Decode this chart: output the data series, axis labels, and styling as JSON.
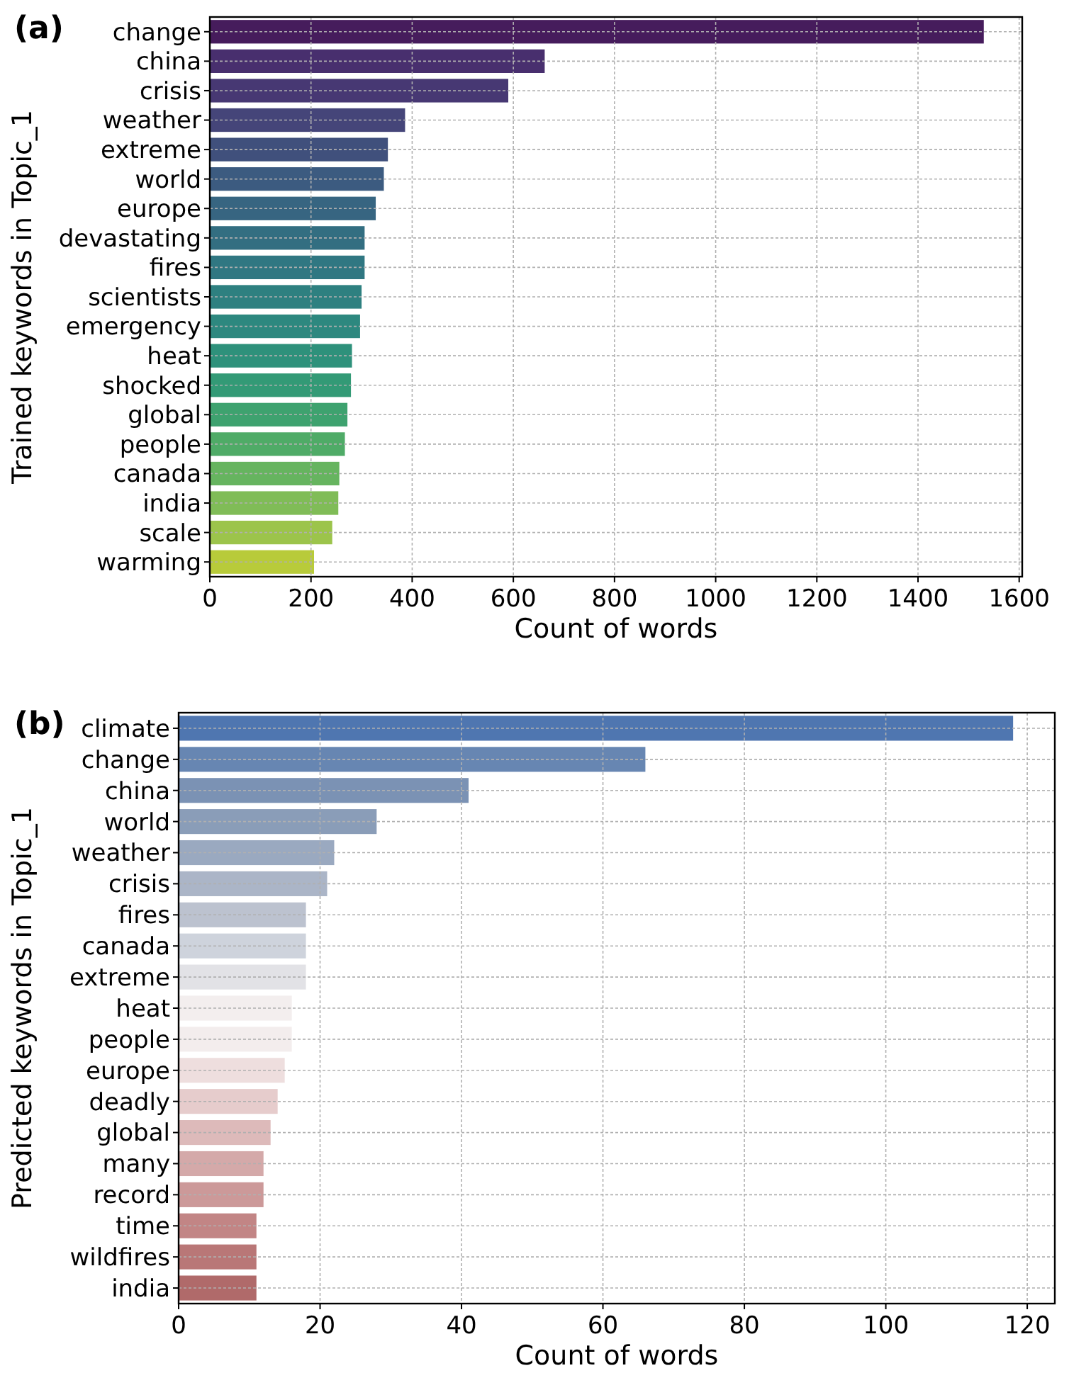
{
  "chart_data": [
    {
      "type": "bar",
      "title": "(a)",
      "orientation": "horizontal",
      "xlabel": "Count of words",
      "ylabel": "Trained keywords in Topic_1",
      "categories": [
        "change",
        "china",
        "crisis",
        "weather",
        "extreme",
        "world",
        "europe",
        "devastating",
        "fires",
        "scientists",
        "emergency",
        "heat",
        "shocked",
        "global",
        "people",
        "canada",
        "india",
        "scale",
        "warming"
      ],
      "values": [
        1530,
        662,
        590,
        386,
        352,
        344,
        328,
        306,
        306,
        300,
        297,
        281,
        279,
        272,
        267,
        256,
        254,
        242,
        206
      ],
      "colors": [
        "#461c5c",
        "#482f6e",
        "#473873",
        "#454579",
        "#40507c",
        "#3c5b80",
        "#376581",
        "#336e81",
        "#307782",
        "#2e8080",
        "#2d887f",
        "#2e917b",
        "#339a76",
        "#3ea26f",
        "#4fab67",
        "#66b45f",
        "#80bc57",
        "#9cc44b",
        "#b8cb3a"
      ],
      "xlim": [
        0,
        1606
      ],
      "xticks": [
        0,
        200,
        400,
        600,
        800,
        1000,
        1200,
        1400,
        1600
      ],
      "grid": true
    },
    {
      "type": "bar",
      "title": "(b)",
      "orientation": "horizontal",
      "xlabel": "Count of words",
      "ylabel": "Predicted keywords in Topic_1",
      "categories": [
        "climate",
        "change",
        "china",
        "world",
        "weather",
        "crisis",
        "fires",
        "canada",
        "extreme",
        "heat",
        "people",
        "europe",
        "deadly",
        "global",
        "many",
        "record",
        "time",
        "wildfires",
        "india"
      ],
      "values": [
        118,
        66,
        41,
        28,
        22,
        21,
        18,
        18,
        18,
        16,
        16,
        15,
        14,
        13,
        12,
        12,
        11,
        11,
        11
      ],
      "colors": [
        "#4f76b0",
        "#6786b2",
        "#7b92b4",
        "#8a9db8",
        "#9aa9c0",
        "#abb5c7",
        "#bcc2cf",
        "#ced3dc",
        "#e2e2e6",
        "#f3eeee",
        "#f3eded",
        "#eedede",
        "#e6cccc",
        "#ddbaba",
        "#d4a9a9",
        "#cc9999",
        "#c28585",
        "#b97777",
        "#b06a6a"
      ],
      "xlim": [
        0,
        123.9
      ],
      "xticks": [
        0,
        20,
        40,
        60,
        80,
        100,
        120
      ],
      "grid": true
    }
  ]
}
